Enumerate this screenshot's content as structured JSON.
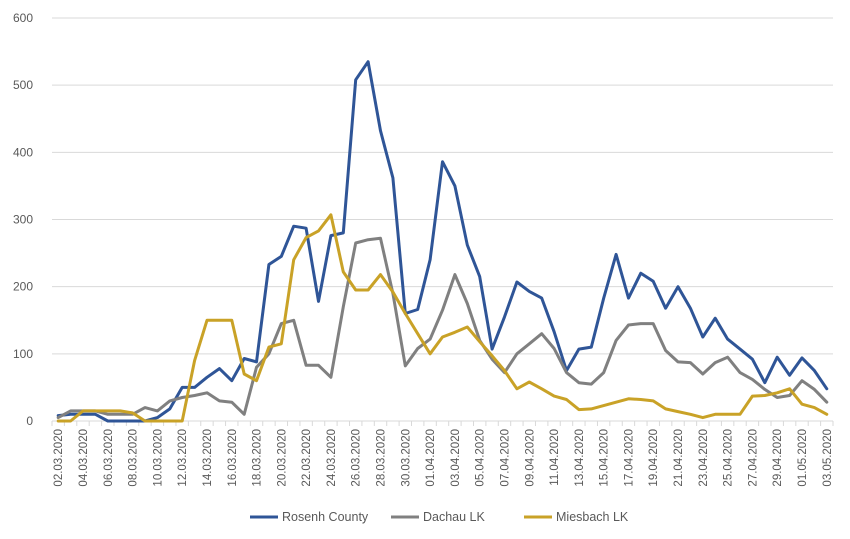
{
  "chart_data": {
    "type": "line",
    "title": "",
    "xlabel": "",
    "ylabel": "",
    "ylim": [
      0,
      600
    ],
    "yticks": [
      "0",
      "100",
      "200",
      "300",
      "400",
      "500",
      "600"
    ],
    "grid": "horizontal",
    "legend_position": "bottom",
    "x": [
      "02.03.2020",
      "03.03.2020",
      "04.03.2020",
      "05.03.2020",
      "06.03.2020",
      "07.03.2020",
      "08.03.2020",
      "09.03.2020",
      "10.03.2020",
      "11.03.2020",
      "12.03.2020",
      "13.03.2020",
      "14.03.2020",
      "15.03.2020",
      "16.03.2020",
      "17.03.2020",
      "18.03.2020",
      "19.03.2020",
      "20.03.2020",
      "21.03.2020",
      "22.03.2020",
      "23.03.2020",
      "24.03.2020",
      "25.03.2020",
      "26.03.2020",
      "27.03.2020",
      "28.03.2020",
      "29.03.2020",
      "30.03.2020",
      "31.03.2020",
      "01.04.2020",
      "02.04.2020",
      "03.04.2020",
      "04.04.2020",
      "05.04.2020",
      "06.04.2020",
      "07.04.2020",
      "08.04.2020",
      "09.04.2020",
      "10.04.2020",
      "11.04.2020",
      "12.04.2020",
      "13.04.2020",
      "14.04.2020",
      "15.04.2020",
      "16.04.2020",
      "17.04.2020",
      "18.04.2020",
      "19.04.2020",
      "20.04.2020",
      "21.04.2020",
      "22.04.2020",
      "23.04.2020",
      "24.04.2020",
      "25.04.2020",
      "26.04.2020",
      "27.04.2020",
      "28.04.2020",
      "29.04.2020",
      "30.04.2020",
      "01.05.2020",
      "02.05.2020",
      "03.05.2020"
    ],
    "x_tick_labels": [
      "02.03.2020",
      "04.03.2020",
      "06.03.2020",
      "08.03.2020",
      "10.03.2020",
      "12.03.2020",
      "14.03.2020",
      "16.03.2020",
      "18.03.2020",
      "20.03.2020",
      "22.03.2020",
      "24.03.2020",
      "26.03.2020",
      "28.03.2020",
      "30.03.2020",
      "01.04.2020",
      "03.04.2020",
      "05.04.2020",
      "07.04.2020",
      "09.04.2020",
      "11.04.2020",
      "13.04.2020",
      "15.04.2020",
      "17.04.2020",
      "19.04.2020",
      "21.04.2020",
      "23.04.2020",
      "25.04.2020",
      "27.04.2020",
      "29.04.2020",
      "01.05.2020",
      "03.05.2020"
    ],
    "series": [
      {
        "name": "Rosenh County",
        "color": "#2f5597",
        "values": [
          8,
          10,
          10,
          10,
          0,
          0,
          0,
          0,
          5,
          18,
          50,
          50,
          65,
          78,
          60,
          93,
          88,
          233,
          245,
          290,
          287,
          178,
          276,
          280,
          508,
          535,
          432,
          362,
          160,
          166,
          240,
          386,
          350,
          262,
          215,
          107,
          155,
          207,
          193,
          183,
          133,
          75,
          107,
          110,
          183,
          248,
          183,
          220,
          208,
          168,
          200,
          168,
          125,
          153,
          122,
          107,
          92,
          57,
          95,
          68,
          94,
          75,
          48
        ]
      },
      {
        "name": "Dachau LK",
        "color": "#808080",
        "values": [
          5,
          15,
          15,
          15,
          10,
          10,
          10,
          20,
          15,
          30,
          35,
          38,
          42,
          30,
          28,
          10,
          80,
          100,
          145,
          150,
          83,
          83,
          65,
          170,
          265,
          270,
          272,
          190,
          82,
          108,
          122,
          165,
          218,
          175,
          120,
          92,
          72,
          100,
          115,
          130,
          108,
          72,
          57,
          55,
          72,
          120,
          143,
          145,
          145,
          105,
          88,
          87,
          70,
          87,
          95,
          72,
          62,
          47,
          35,
          38,
          60,
          47,
          28
        ]
      },
      {
        "name": "Miesbach LK",
        "color": "#c9a227",
        "values": [
          0,
          0,
          15,
          15,
          15,
          15,
          12,
          0,
          0,
          0,
          0,
          90,
          150,
          150,
          150,
          70,
          60,
          110,
          115,
          240,
          273,
          283,
          307,
          222,
          195,
          195,
          218,
          192,
          160,
          130,
          100,
          125,
          132,
          140,
          118,
          97,
          75,
          48,
          58,
          48,
          37,
          32,
          17,
          18,
          23,
          28,
          33,
          32,
          30,
          18,
          14,
          10,
          5,
          10,
          10,
          10,
          37,
          38,
          42,
          48,
          25,
          20,
          10
        ]
      }
    ]
  }
}
